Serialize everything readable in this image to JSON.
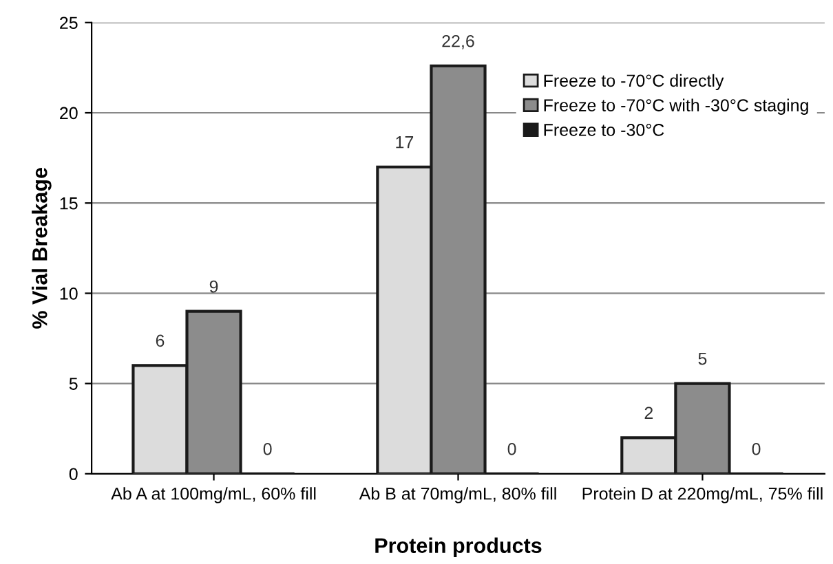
{
  "chart_data": {
    "type": "bar",
    "xlabel": "Protein products",
    "ylabel": "% Vial Breakage",
    "categories": [
      "Ab A at 100mg/mL, 60% fill",
      "Ab B at 70mg/mL, 80% fill",
      "Protein D at 220mg/mL, 75% fill"
    ],
    "series": [
      {
        "name": "Freeze to -70°C directly",
        "color": "#dcdcdc",
        "values": [
          6,
          17,
          2
        ],
        "value_labels": [
          "6",
          "17",
          "2"
        ]
      },
      {
        "name": "Freeze to -70°C with -30°C staging",
        "color": "#8c8c8c",
        "values": [
          9,
          22.6,
          5
        ],
        "value_labels": [
          "9",
          "22,6",
          "5"
        ]
      },
      {
        "name": "Freeze to -30°C",
        "color": "#1a1a1a",
        "values": [
          0,
          0,
          0
        ],
        "value_labels": [
          "0",
          "0",
          "0"
        ]
      }
    ],
    "ylim": [
      0,
      25
    ],
    "yticks": [
      0,
      5,
      10,
      15,
      20,
      25
    ],
    "grid": "y",
    "legend": "top right"
  }
}
